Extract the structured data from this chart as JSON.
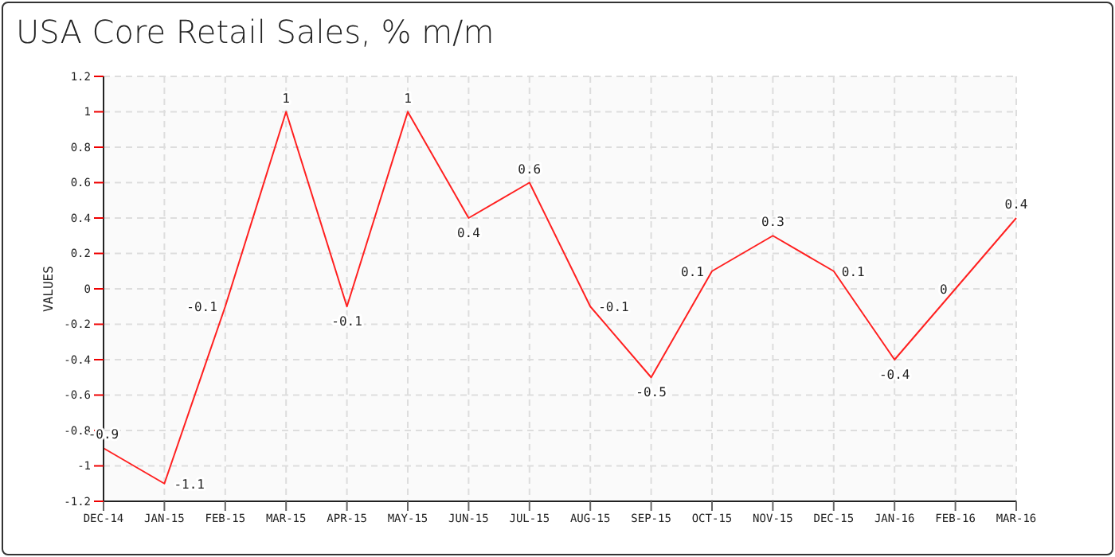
{
  "chart_data": {
    "type": "line",
    "title": "USA Core Retail Sales, % m/m",
    "ylabel": "VALUES",
    "categories": [
      "DEC-14",
      "JAN-15",
      "FEB-15",
      "MAR-15",
      "APR-15",
      "MAY-15",
      "JUN-15",
      "JUL-15",
      "AUG-15",
      "SEP-15",
      "OCT-15",
      "NOV-15",
      "DEC-15",
      "JAN-16",
      "FEB-16",
      "MAR-16"
    ],
    "series": [
      {
        "color": "#ff2020",
        "values": [
          -0.9,
          -1.1,
          -0.1,
          1,
          -0.1,
          1,
          0.4,
          0.6,
          -0.1,
          -0.5,
          0.1,
          0.3,
          0.1,
          -0.4,
          0,
          0.4
        ]
      }
    ],
    "ylim": [
      -1.2,
      1.2
    ],
    "yticks": [
      -1.2,
      -1,
      -0.8,
      -0.6,
      -0.4,
      -0.2,
      0,
      0.2,
      0.4,
      0.6,
      0.8,
      1,
      1.2
    ],
    "grid": true,
    "data_labels": true,
    "marker": "none",
    "line_style": "solid",
    "legend": false
  }
}
